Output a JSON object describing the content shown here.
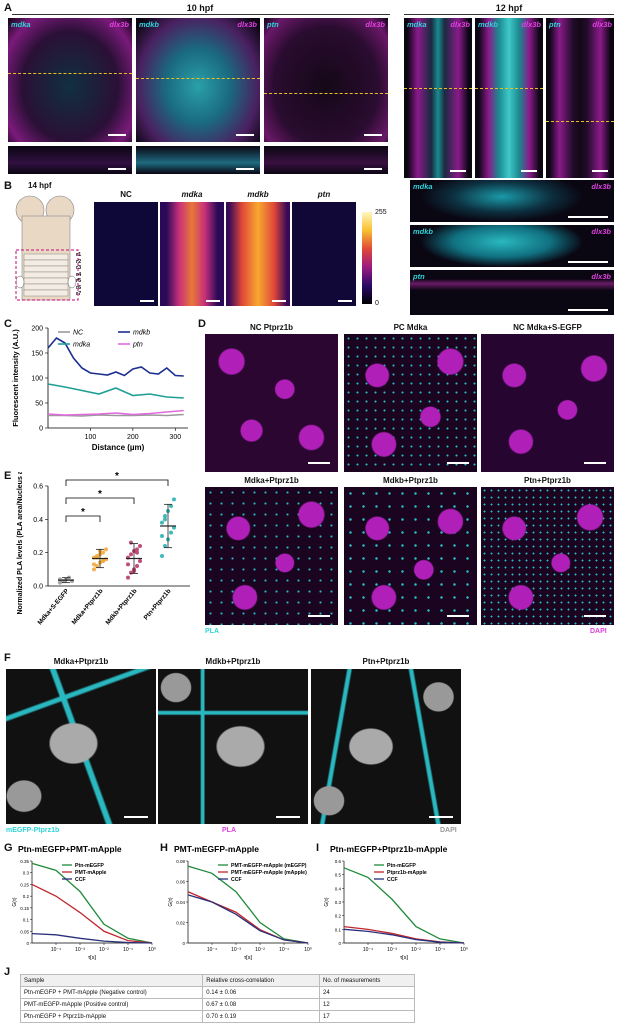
{
  "panels": {
    "A": "A",
    "B": "B",
    "C": "C",
    "D": "D",
    "E": "E",
    "F": "F",
    "G": "G",
    "H": "H",
    "I": "I",
    "J": "J"
  },
  "A": {
    "time10": "10 hpf",
    "time12": "12 hpf",
    "ch10": [
      "mdka",
      "mdkb",
      "ptn"
    ],
    "ch12": [
      "mdka",
      "mdkb",
      "ptn"
    ],
    "magenta": "dlx3b"
  },
  "B": {
    "time": "14 hpf",
    "cols": [
      "NC",
      "mdka",
      "mdkb",
      "ptn"
    ],
    "rhombomeres": [
      "r1",
      "r2",
      "r3",
      "r4",
      "r5",
      "r6",
      "r7"
    ],
    "cbar_max": "255",
    "cbar_min": "0",
    "sections": [
      "mdka",
      "mdkb",
      "ptn"
    ]
  },
  "chart_data": [
    {
      "type": "line",
      "panel": "C",
      "xlabel": "Distance (µm)",
      "ylabel": "Fluorescent intensity (A.U.)",
      "xlim": [
        0,
        330
      ],
      "ylim": [
        0,
        200
      ],
      "xticks": [
        100,
        200,
        300
      ],
      "yticks": [
        0,
        50,
        100,
        150,
        200
      ],
      "legend": [
        "NC",
        "mdkb",
        "mdka",
        "ptn"
      ],
      "series": [
        {
          "name": "NC",
          "color": "#9a9a9a",
          "x": [
            0,
            40,
            80,
            120,
            160,
            200,
            240,
            280,
            320
          ],
          "y": [
            25,
            25,
            24,
            26,
            25,
            25,
            26,
            25,
            27
          ]
        },
        {
          "name": "mdkb",
          "color": "#1c2f8f",
          "x": [
            0,
            20,
            40,
            60,
            80,
            100,
            120,
            140,
            160,
            180,
            200,
            220,
            240,
            260,
            280,
            300,
            320
          ],
          "y": [
            160,
            180,
            170,
            140,
            120,
            110,
            108,
            106,
            112,
            105,
            118,
            122,
            110,
            108,
            120,
            105,
            104
          ]
        },
        {
          "name": "mdka",
          "color": "#1f9e96",
          "x": [
            0,
            40,
            80,
            120,
            160,
            200,
            240,
            280,
            320
          ],
          "y": [
            88,
            82,
            75,
            68,
            80,
            65,
            68,
            62,
            60
          ]
        },
        {
          "name": "ptn",
          "color": "#e26ae0",
          "x": [
            0,
            40,
            80,
            120,
            160,
            200,
            240,
            280,
            320
          ],
          "y": [
            28,
            26,
            27,
            28,
            30,
            27,
            29,
            32,
            35
          ]
        }
      ]
    },
    {
      "type": "scatter",
      "panel": "E",
      "ylabel": "Normalized PLA levels (PLA area/Nucleus area)",
      "ylim": [
        0,
        0.6
      ],
      "yticks": [
        0.0,
        0.2,
        0.4,
        0.6
      ],
      "categories": [
        "Mdka+S-EGFP",
        "Mdka+Ptprz1b",
        "Mdkb+Ptprz1b",
        "Ptn+Ptprz1b"
      ],
      "colors": [
        "#9a9a9a",
        "#f2a93b",
        "#b83a6a",
        "#2ab3b0"
      ],
      "mean": [
        0.035,
        0.165,
        0.165,
        0.36
      ],
      "sd": [
        0.015,
        0.055,
        0.09,
        0.13
      ],
      "points": [
        [
          0.02,
          0.03,
          0.04,
          0.05,
          0.03,
          0.04
        ],
        [
          0.1,
          0.12,
          0.14,
          0.15,
          0.16,
          0.17,
          0.18,
          0.19,
          0.2,
          0.22,
          0.13,
          0.17,
          0.21,
          0.15
        ],
        [
          0.05,
          0.08,
          0.1,
          0.12,
          0.15,
          0.17,
          0.19,
          0.21,
          0.22,
          0.24,
          0.13,
          0.26,
          0.09,
          0.2
        ],
        [
          0.18,
          0.24,
          0.28,
          0.32,
          0.35,
          0.38,
          0.4,
          0.45,
          0.48,
          0.52,
          0.3,
          0.42
        ]
      ],
      "sig": [
        "*",
        "*",
        "*"
      ]
    },
    {
      "type": "line",
      "panel": "G",
      "title": "Ptn-mEGFP+PMT-mApple",
      "ylabel": "G(τ)",
      "xlabel": "τ[s]",
      "ylim": [
        0,
        0.35
      ],
      "yticks": [
        0.0,
        0.05,
        0.1,
        0.15,
        0.2,
        0.25,
        0.3,
        0.35
      ],
      "xticks": [
        "10⁻⁴",
        "10⁻³",
        "10⁻²",
        "10⁻¹",
        "10⁰"
      ],
      "series": [
        {
          "name": "Ptn-mEGFP",
          "color": "#1f8a3a",
          "x": [
            -5,
            -4,
            -3,
            -2,
            -1,
            0
          ],
          "y": [
            0.34,
            0.31,
            0.22,
            0.08,
            0.02,
            0.0
          ]
        },
        {
          "name": "PMT-mApple",
          "color": "#c0262c",
          "x": [
            -5,
            -4,
            -3,
            -2,
            -1,
            0
          ],
          "y": [
            0.25,
            0.2,
            0.13,
            0.05,
            0.01,
            0.0
          ]
        },
        {
          "name": "CCF",
          "color": "#2a2f7a",
          "x": [
            -5,
            -4,
            -3,
            -2,
            -1,
            0
          ],
          "y": [
            0.04,
            0.035,
            0.02,
            0.008,
            0.002,
            0.0
          ]
        }
      ]
    },
    {
      "type": "line",
      "panel": "H",
      "title": "PMT-mEGFP-mApple",
      "ylabel": "G(τ)",
      "xlabel": "τ[s]",
      "ylim": [
        0,
        0.08
      ],
      "yticks": [
        0.0,
        0.02,
        0.04,
        0.06,
        0.08
      ],
      "xticks": [
        "10⁻⁴",
        "10⁻³",
        "10⁻²",
        "10⁻¹",
        "10⁰"
      ],
      "series": [
        {
          "name": "PMT-mEGFP-mApple (mEGFP)",
          "color": "#1f8a3a",
          "x": [
            -5,
            -4,
            -3,
            -2,
            -1,
            0
          ],
          "y": [
            0.075,
            0.068,
            0.05,
            0.02,
            0.004,
            0.0
          ]
        },
        {
          "name": "PMT-mEGFP-mApple (mApple)",
          "color": "#c0262c",
          "x": [
            -5,
            -4,
            -3,
            -2,
            -1,
            0
          ],
          "y": [
            0.05,
            0.04,
            0.03,
            0.013,
            0.003,
            0.0
          ]
        },
        {
          "name": "CCF",
          "color": "#2a2f7a",
          "x": [
            -5,
            -4,
            -3,
            -2,
            -1,
            0
          ],
          "y": [
            0.047,
            0.04,
            0.028,
            0.012,
            0.003,
            0.0
          ]
        }
      ]
    },
    {
      "type": "line",
      "panel": "I",
      "title": "Ptn-mEGFP+Ptprz1b-mApple",
      "ylabel": "G(τ)",
      "xlabel": "τ[s]",
      "ylim": [
        0,
        0.6
      ],
      "yticks": [
        0.0,
        0.1,
        0.2,
        0.3,
        0.4,
        0.5,
        0.6
      ],
      "xticks": [
        "10⁻⁴",
        "10⁻³",
        "10⁻²",
        "10⁻¹",
        "10⁰"
      ],
      "series": [
        {
          "name": "Ptn-mEGFP",
          "color": "#1f8a3a",
          "x": [
            -5,
            -4,
            -3,
            -2,
            -1,
            0
          ],
          "y": [
            0.55,
            0.48,
            0.32,
            0.12,
            0.03,
            0.0
          ]
        },
        {
          "name": "Ptprz1b-mApple",
          "color": "#c0262c",
          "x": [
            -5,
            -4,
            -3,
            -2,
            -1,
            0
          ],
          "y": [
            0.12,
            0.1,
            0.07,
            0.03,
            0.008,
            0.0
          ]
        },
        {
          "name": "CCF",
          "color": "#2a2f7a",
          "x": [
            -5,
            -4,
            -3,
            -2,
            -1,
            0
          ],
          "y": [
            0.1,
            0.085,
            0.06,
            0.025,
            0.006,
            0.0
          ]
        }
      ]
    }
  ],
  "D": {
    "titles": [
      "NC Ptprz1b",
      "PC Mdka",
      "NC Mdka+S-EGFP",
      "Mdka+Ptprz1b",
      "Mdkb+Ptprz1b",
      "Ptn+Ptprz1b"
    ],
    "left": "PLA",
    "right": "DAPI"
  },
  "F": {
    "titles": [
      "Mdka+Ptprz1b",
      "Mdkb+Ptprz1b",
      "Ptn+Ptprz1b"
    ],
    "c1": "mEGFP-Ptprz1b",
    "c2": "PLA",
    "c3": "DAPI"
  },
  "J": {
    "headers": [
      "Sample",
      "Relative cross-correlation",
      "No. of measurements"
    ],
    "rows": [
      [
        "Ptn-mEGFP + PMT-mApple (Negative control)",
        "0.14 ± 0.06",
        "24"
      ],
      [
        "PMT-mEGFP-mApple (Positive control)",
        "0.67 ± 0.08",
        "12"
      ],
      [
        "Ptn-mEGFP + Ptprz1b-mApple",
        "0.70 ± 0.19",
        "17"
      ]
    ]
  }
}
